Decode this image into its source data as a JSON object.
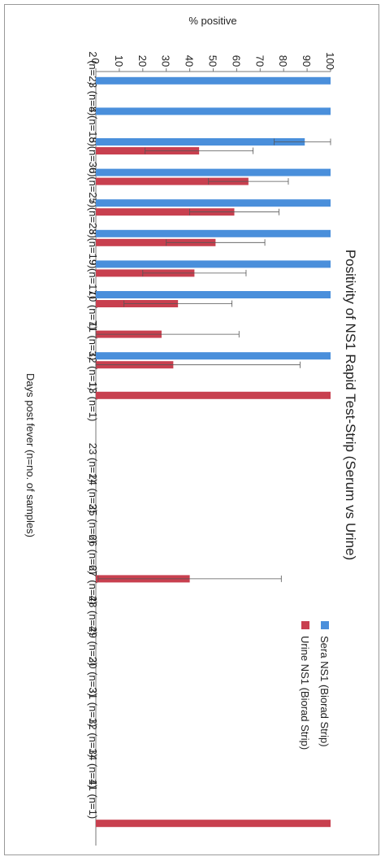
{
  "chart_data": {
    "type": "bar",
    "orientation": "rotated-90-clockwise",
    "title": "Positivity of NS1 Rapid Test-Strip (Serum vs Urine)",
    "xlabel": "Days post fever (n=no. of samples)",
    "ylabel": "% positive",
    "ylim": [
      0,
      100
    ],
    "yticks": [
      0,
      10,
      20,
      30,
      40,
      50,
      60,
      70,
      80,
      90,
      100
    ],
    "categories": [
      "2 (n=2)",
      "3 (n=8)",
      "4 (n=18)",
      "5 (n=30)",
      "6 (n=25)",
      "7 (n=23)",
      "8 (n=19)",
      "9 (n=17)",
      "10 (n=7)",
      "11 (n=3)",
      "12 (n=1)",
      "13 (n=1)",
      "",
      "23 (n=1)",
      "24 (n=3)",
      "25 (n=6)",
      "26 (n=6)",
      "27 (n=4)",
      "28 (n=4)",
      "29 (n=2)",
      "30 (n=3)",
      "31 (n=1)",
      "32 (n=1)",
      "34 (n=1)",
      "41 (n=1)"
    ],
    "series": [
      {
        "name": "Sera NS1 (Biorad Strip)",
        "color": "#4a8fdb",
        "values": [
          100,
          100,
          89,
          100,
          100,
          100,
          100,
          100,
          null,
          100,
          null,
          null,
          null,
          null,
          null,
          null,
          null,
          null,
          null,
          null,
          null,
          null,
          null,
          null,
          null
        ],
        "error": [
          null,
          null,
          13,
          null,
          null,
          null,
          null,
          null,
          null,
          null,
          null,
          null,
          null,
          null,
          null,
          null,
          null,
          null,
          null,
          null,
          null,
          null,
          null,
          null,
          null
        ]
      },
      {
        "name": "Urine NS1 (Biorad Strip)",
        "color": "#c8404f",
        "values": [
          null,
          null,
          44,
          65,
          59,
          51,
          42,
          35,
          28,
          33,
          100,
          null,
          null,
          null,
          null,
          null,
          40,
          null,
          null,
          null,
          null,
          null,
          null,
          null,
          100
        ],
        "error": [
          null,
          null,
          23,
          17,
          19,
          21,
          22,
          23,
          33,
          54,
          null,
          null,
          null,
          null,
          null,
          null,
          39,
          null,
          null,
          null,
          null,
          null,
          null,
          null,
          null
        ]
      }
    ],
    "legend_position": "bottom-right"
  }
}
